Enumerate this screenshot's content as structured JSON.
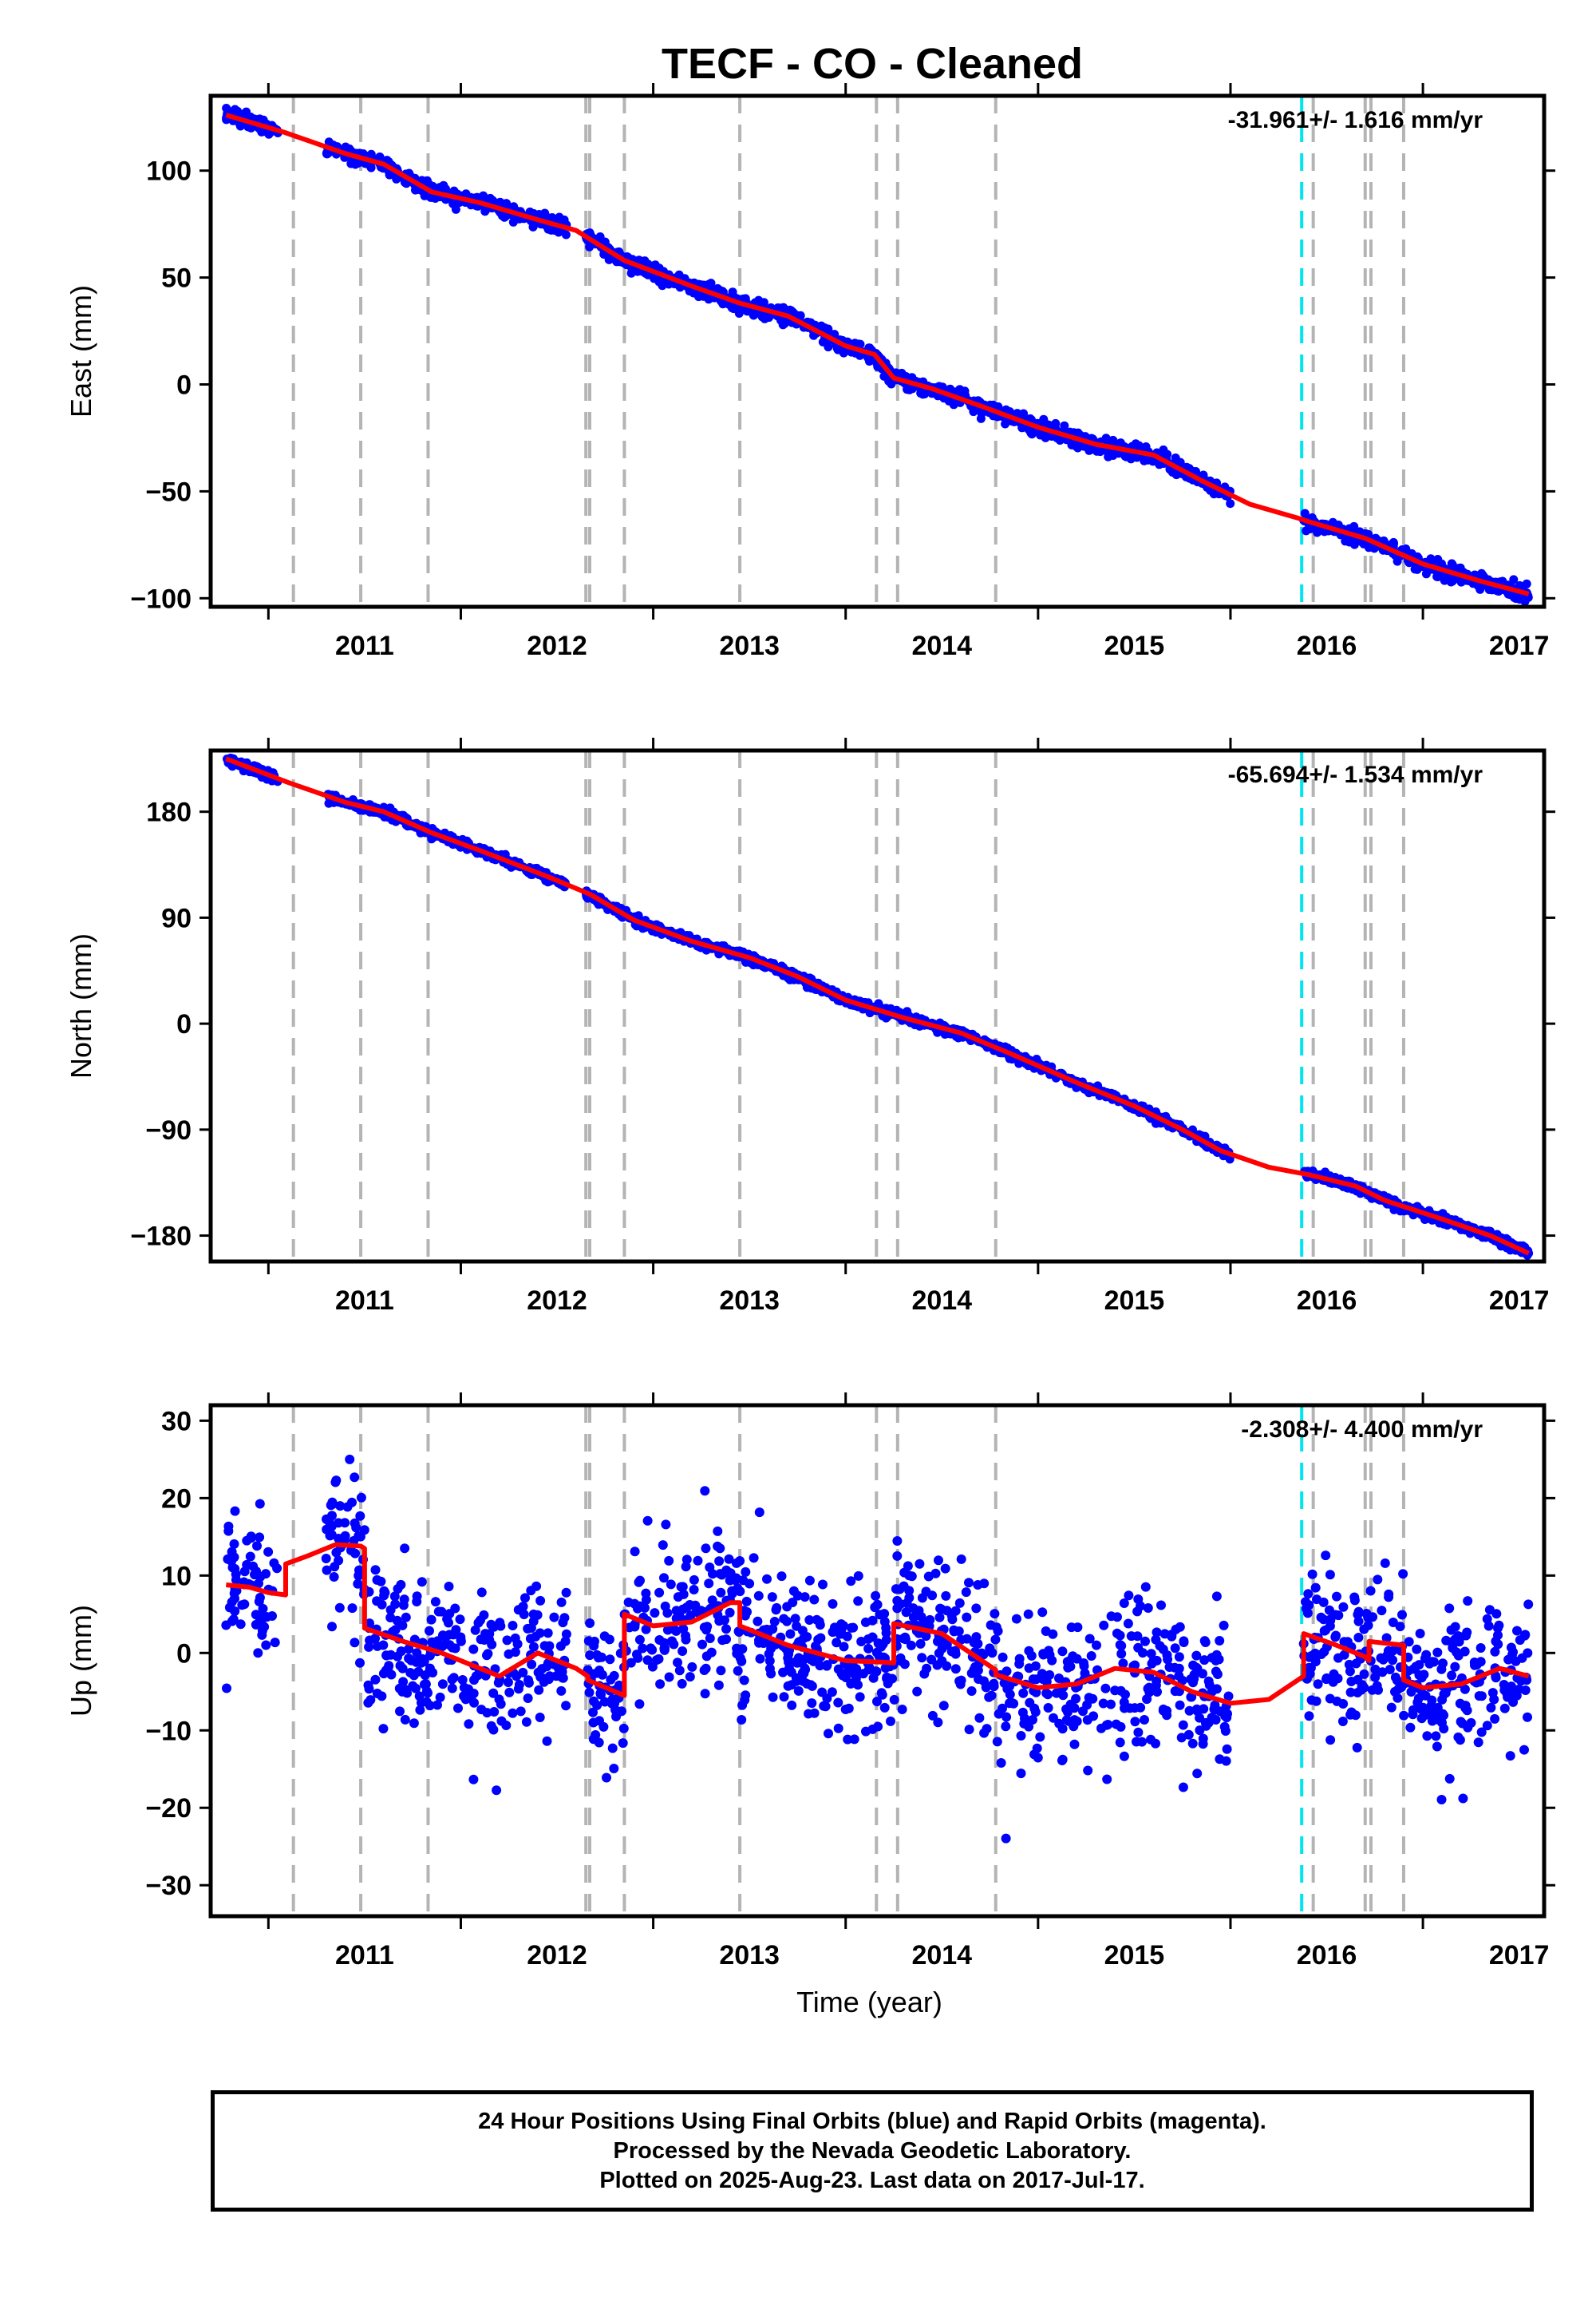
{
  "title": "TECF  - CO - Cleaned",
  "colors": {
    "series_final": "#0000ff",
    "series_rapid": "#ff00ff",
    "model_line": "#ff0000",
    "equipment_line": "#b4b4b4",
    "earthquake_line": "#00e5ee",
    "frame": "#000000"
  },
  "x_tick_labels": [
    "2011",
    "2012",
    "2013",
    "2014",
    "2015",
    "2016",
    "2017"
  ],
  "chart_data": [
    {
      "type": "scatter",
      "panel": "east",
      "ylabel": "East (mm)",
      "xlabel": "",
      "xlim": [
        2010.7,
        2017.63
      ],
      "ylim": [
        -104,
        135
      ],
      "yticks": [
        100,
        50,
        0,
        -50,
        -100
      ],
      "ytick_labels": [
        "100",
        "50",
        "0",
        "−50",
        "−100"
      ],
      "rate_text": "-31.961+/- 1.616 mm/yr",
      "gap_segments": [
        [
          2010.78,
          2011.05
        ],
        [
          2011.3,
          2012.55
        ],
        [
          2012.65,
          2016.0
        ],
        [
          2016.38,
          2017.55
        ]
      ],
      "series": [
        {
          "name": "model",
          "x": [
            2010.78,
            2011.08,
            2011.4,
            2011.6,
            2011.85,
            2012.1,
            2012.4,
            2012.6,
            2012.67,
            2012.85,
            2013.2,
            2013.45,
            2013.7,
            2014.0,
            2014.15,
            2014.25,
            2014.45,
            2014.7,
            2015.0,
            2015.3,
            2015.6,
            2015.85,
            2016.1,
            2016.37,
            2016.4,
            2016.7,
            2017.0,
            2017.3,
            2017.55
          ],
          "y": [
            126,
            118,
            108,
            103,
            90,
            85,
            77,
            72,
            68,
            58,
            46,
            38,
            32,
            18,
            14,
            3,
            -2,
            -10,
            -20,
            -28,
            -33,
            -45,
            -56,
            -63,
            -64,
            -72,
            -84,
            -92,
            -98
          ]
        }
      ]
    },
    {
      "type": "scatter",
      "panel": "north",
      "ylabel": "North (mm)",
      "xlabel": "",
      "xlim": [
        2010.7,
        2017.63
      ],
      "ylim": [
        -202,
        232
      ],
      "yticks": [
        180,
        90,
        0,
        -90,
        -180
      ],
      "ytick_labels": [
        "180",
        "90",
        "0",
        "−90",
        "−180"
      ],
      "rate_text": "-65.694+/- 1.534 mm/yr",
      "gap_segments": [
        [
          2010.78,
          2011.05
        ],
        [
          2011.3,
          2012.55
        ],
        [
          2012.65,
          2016.0
        ],
        [
          2016.38,
          2017.55
        ]
      ],
      "series": [
        {
          "name": "model",
          "x": [
            2010.78,
            2011.1,
            2011.4,
            2011.6,
            2011.85,
            2012.1,
            2012.45,
            2012.67,
            2012.9,
            2013.2,
            2013.5,
            2013.75,
            2014.0,
            2014.3,
            2014.6,
            2014.85,
            2015.2,
            2015.5,
            2015.75,
            2015.95,
            2016.2,
            2016.4,
            2016.65,
            2016.8,
            2017.1,
            2017.35,
            2017.55
          ],
          "y": [
            225,
            205,
            188,
            180,
            162,
            147,
            125,
            110,
            88,
            70,
            56,
            40,
            20,
            5,
            -8,
            -25,
            -50,
            -70,
            -90,
            -108,
            -122,
            -128,
            -138,
            -150,
            -166,
            -180,
            -195
          ]
        }
      ]
    },
    {
      "type": "scatter",
      "panel": "up",
      "ylabel": "Up (mm)",
      "xlabel": "Time (year)",
      "xlim": [
        2010.7,
        2017.63
      ],
      "ylim": [
        -34,
        32
      ],
      "yticks": [
        30,
        20,
        10,
        0,
        -10,
        -20,
        -30
      ],
      "ytick_labels": [
        "30",
        "20",
        "10",
        "0",
        "−10",
        "−20",
        "−30"
      ],
      "rate_text": "-2.308+/- 4.400 mm/yr",
      "gap_segments": [
        [
          2010.78,
          2011.05
        ],
        [
          2011.3,
          2012.55
        ],
        [
          2012.65,
          2016.0
        ],
        [
          2016.38,
          2017.55
        ]
      ],
      "series": [
        {
          "name": "model",
          "x": [
            2010.78,
            2010.9,
            2011.0,
            2011.09,
            2011.09,
            2011.2,
            2011.35,
            2011.48,
            2011.5,
            2011.5,
            2011.7,
            2011.9,
            2012.05,
            2012.2,
            2012.4,
            2012.6,
            2012.66,
            2012.66,
            2012.85,
            2012.85,
            2013.0,
            2013.2,
            2013.4,
            2013.45,
            2013.45,
            2013.7,
            2014.0,
            2014.2,
            2014.25,
            2014.25,
            2014.5,
            2014.78,
            2014.78,
            2015.0,
            2015.2,
            2015.4,
            2015.6,
            2015.8,
            2016.0,
            2016.2,
            2016.38,
            2016.38,
            2016.55,
            2016.7,
            2016.72,
            2016.72,
            2016.9,
            2016.9,
            2017.0,
            2017.2,
            2017.4,
            2017.55
          ],
          "y": [
            8.8,
            8.5,
            7.8,
            7.5,
            11.5,
            12.5,
            14,
            13.8,
            13.5,
            3.2,
            1.5,
            0,
            -1.5,
            -3,
            0,
            -2,
            -3,
            -3.5,
            -5.5,
            5,
            3.5,
            4,
            6.5,
            6.5,
            3.5,
            1,
            -1,
            -1.2,
            -1.3,
            3.8,
            2.5,
            -2.2,
            -2.8,
            -4.5,
            -4,
            -2,
            -2.5,
            -5,
            -6.5,
            -6,
            -3,
            2.5,
            1,
            -0.5,
            -1,
            1.5,
            1,
            -3.5,
            -4.5,
            -4,
            -2,
            -3
          ]
        }
      ]
    }
  ],
  "event_lines": {
    "equipment": [
      2011.13,
      2011.48,
      2011.83,
      2012.65,
      2012.67,
      2012.85,
      2013.45,
      2014.16,
      2014.27,
      2014.78,
      2016.43,
      2016.7,
      2016.73,
      2016.9
    ],
    "earthquake": [
      2016.37
    ]
  },
  "footer": {
    "line1": "24 Hour Positions Using Final Orbits (blue) and Rapid Orbits (magenta).",
    "line2": "Processed by the Nevada Geodetic Laboratory.",
    "line3": "Plotted on 2025-Aug-23. Last data on 2017-Jul-17."
  }
}
